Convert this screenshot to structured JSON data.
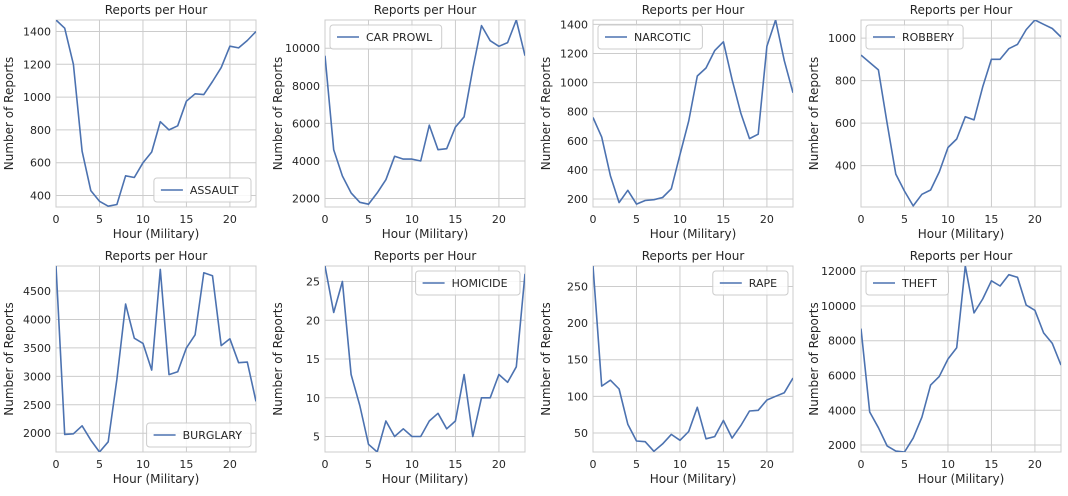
{
  "chart_data": [
    {
      "type": "line",
      "title": "Reports per Hour",
      "xlabel": "Hour (Military)",
      "ylabel": "Number of Reports",
      "xlim": [
        0,
        23
      ],
      "ylim": [
        330,
        1470
      ],
      "xticks": [
        0,
        5,
        10,
        15,
        20
      ],
      "yticks": [
        400,
        600,
        800,
        1000,
        1200,
        1400
      ],
      "grid": true,
      "legend_position": "lower-right",
      "series": [
        {
          "name": "ASSAULT",
          "color": "#4c72b0",
          "x": [
            0,
            1,
            2,
            3,
            4,
            5,
            6,
            7,
            8,
            9,
            10,
            11,
            12,
            13,
            14,
            15,
            16,
            17,
            18,
            19,
            20,
            21,
            22,
            23
          ],
          "values": [
            1470,
            1420,
            1200,
            670,
            430,
            365,
            335,
            345,
            520,
            510,
            600,
            665,
            850,
            800,
            825,
            975,
            1020,
            1015,
            1095,
            1180,
            1310,
            1300,
            1345,
            1400
          ]
        }
      ]
    },
    {
      "type": "line",
      "title": "Reports per Hour",
      "xlabel": "Hour (Military)",
      "ylabel": "Number of Reports",
      "xlim": [
        0,
        23
      ],
      "ylim": [
        1550,
        11500
      ],
      "xticks": [
        0,
        5,
        10,
        15,
        20
      ],
      "yticks": [
        2000,
        4000,
        6000,
        8000,
        10000
      ],
      "grid": true,
      "legend_position": "upper-left",
      "series": [
        {
          "name": "CAR PROWL",
          "color": "#4c72b0",
          "x": [
            0,
            1,
            2,
            3,
            4,
            5,
            6,
            7,
            8,
            9,
            10,
            11,
            12,
            13,
            14,
            15,
            16,
            17,
            18,
            19,
            20,
            21,
            22,
            23
          ],
          "values": [
            9600,
            4600,
            3200,
            2300,
            1800,
            1700,
            2300,
            3000,
            4250,
            4100,
            4100,
            4000,
            5900,
            4600,
            4650,
            5800,
            6350,
            8900,
            11200,
            10400,
            10100,
            10300,
            11500,
            9600
          ]
        }
      ]
    },
    {
      "type": "line",
      "title": "Reports per Hour",
      "xlabel": "Hour (Military)",
      "ylabel": "Number of Reports",
      "xlim": [
        0,
        23
      ],
      "ylim": [
        145,
        1430
      ],
      "xticks": [
        0,
        5,
        10,
        15,
        20
      ],
      "yticks": [
        200,
        400,
        600,
        800,
        1000,
        1200,
        1400
      ],
      "grid": true,
      "legend_position": "upper-left",
      "series": [
        {
          "name": "NARCOTIC",
          "color": "#4c72b0",
          "x": [
            0,
            1,
            2,
            3,
            4,
            5,
            6,
            7,
            8,
            9,
            10,
            11,
            12,
            13,
            14,
            15,
            16,
            17,
            18,
            19,
            20,
            21,
            22,
            23
          ],
          "values": [
            760,
            625,
            360,
            175,
            260,
            165,
            190,
            195,
            210,
            270,
            505,
            735,
            1045,
            1100,
            1220,
            1280,
            1020,
            790,
            615,
            645,
            1250,
            1430,
            1150,
            930
          ]
        }
      ]
    },
    {
      "type": "line",
      "title": "Reports per Hour",
      "xlabel": "Hour (Military)",
      "ylabel": "Number of Reports",
      "xlim": [
        0,
        23
      ],
      "ylim": [
        205,
        1085
      ],
      "xticks": [
        0,
        5,
        10,
        15,
        20
      ],
      "yticks": [
        400,
        600,
        800,
        1000
      ],
      "grid": true,
      "legend_position": "upper-left",
      "series": [
        {
          "name": "ROBBERY",
          "color": "#4c72b0",
          "x": [
            0,
            1,
            2,
            3,
            4,
            5,
            6,
            7,
            8,
            9,
            10,
            11,
            12,
            13,
            14,
            15,
            16,
            17,
            18,
            19,
            20,
            21,
            22,
            23
          ],
          "values": [
            920,
            885,
            850,
            600,
            360,
            280,
            210,
            265,
            285,
            370,
            485,
            525,
            630,
            615,
            770,
            900,
            900,
            950,
            970,
            1040,
            1085,
            1065,
            1045,
            1005
          ]
        }
      ]
    },
    {
      "type": "line",
      "title": "Reports per Hour",
      "xlabel": "Hour (Military)",
      "ylabel": "Number of Reports",
      "xlim": [
        0,
        23
      ],
      "ylim": [
        1670,
        4940
      ],
      "xticks": [
        0,
        5,
        10,
        15,
        20
      ],
      "yticks": [
        2000,
        2500,
        3000,
        3500,
        4000,
        4500
      ],
      "grid": true,
      "legend_position": "lower-right",
      "series": [
        {
          "name": "BURGLARY",
          "color": "#4c72b0",
          "x": [
            0,
            1,
            2,
            3,
            4,
            5,
            6,
            7,
            8,
            9,
            10,
            11,
            12,
            13,
            14,
            15,
            16,
            17,
            18,
            19,
            20,
            21,
            22,
            23
          ],
          "values": [
            4940,
            1980,
            1990,
            2130,
            1880,
            1670,
            1850,
            2950,
            4270,
            3670,
            3580,
            3110,
            4880,
            3030,
            3080,
            3500,
            3730,
            4820,
            4770,
            3540,
            3660,
            3240,
            3250,
            2560
          ]
        }
      ]
    },
    {
      "type": "line",
      "title": "Reports per Hour",
      "xlabel": "Hour (Military)",
      "ylabel": "Number of Reports",
      "xlim": [
        0,
        23
      ],
      "ylim": [
        3,
        27
      ],
      "xticks": [
        0,
        5,
        10,
        15,
        20
      ],
      "yticks": [
        5,
        10,
        15,
        20,
        25
      ],
      "grid": true,
      "legend_position": "upper-right",
      "series": [
        {
          "name": "HOMICIDE",
          "color": "#4c72b0",
          "x": [
            0,
            1,
            2,
            3,
            4,
            5,
            6,
            7,
            8,
            9,
            10,
            11,
            12,
            13,
            14,
            15,
            16,
            17,
            18,
            19,
            20,
            21,
            22,
            23
          ],
          "values": [
            27,
            21,
            25,
            13,
            9,
            4,
            3,
            7,
            5,
            6,
            5,
            5,
            7,
            8,
            6,
            7,
            13,
            5,
            10,
            10,
            13,
            12,
            14,
            26
          ]
        }
      ]
    },
    {
      "type": "line",
      "title": "Reports per Hour",
      "xlabel": "Hour (Military)",
      "ylabel": "Number of Reports",
      "xlim": [
        0,
        23
      ],
      "ylim": [
        24,
        278
      ],
      "xticks": [
        0,
        5,
        10,
        15,
        20
      ],
      "yticks": [
        50,
        100,
        150,
        200,
        250
      ],
      "grid": true,
      "legend_position": "upper-right",
      "series": [
        {
          "name": "RAPE",
          "color": "#4c72b0",
          "x": [
            0,
            1,
            2,
            3,
            4,
            5,
            6,
            7,
            8,
            9,
            10,
            11,
            12,
            13,
            14,
            15,
            16,
            17,
            18,
            19,
            20,
            21,
            22,
            23
          ],
          "values": [
            278,
            114,
            122,
            110,
            62,
            39,
            38,
            25,
            35,
            48,
            40,
            52,
            85,
            42,
            45,
            67,
            43,
            60,
            80,
            81,
            95,
            100,
            105,
            125
          ]
        }
      ]
    },
    {
      "type": "line",
      "title": "Reports per Hour",
      "xlabel": "Hour (Military)",
      "ylabel": "Number of Reports",
      "xlim": [
        0,
        23
      ],
      "ylim": [
        1600,
        12300
      ],
      "xticks": [
        0,
        5,
        10,
        15,
        20
      ],
      "yticks": [
        2000,
        4000,
        6000,
        8000,
        10000,
        12000
      ],
      "grid": true,
      "legend_position": "upper-left",
      "series": [
        {
          "name": "THEFT",
          "color": "#4c72b0",
          "x": [
            0,
            1,
            2,
            3,
            4,
            5,
            6,
            7,
            8,
            9,
            10,
            11,
            12,
            13,
            14,
            15,
            16,
            17,
            18,
            19,
            20,
            21,
            22,
            23
          ],
          "values": [
            8700,
            3900,
            3000,
            1950,
            1650,
            1600,
            2400,
            3600,
            5450,
            5950,
            6950,
            7600,
            12300,
            9600,
            10400,
            11450,
            11150,
            11800,
            11650,
            10050,
            9750,
            8450,
            7850,
            6600
          ]
        }
      ]
    }
  ]
}
